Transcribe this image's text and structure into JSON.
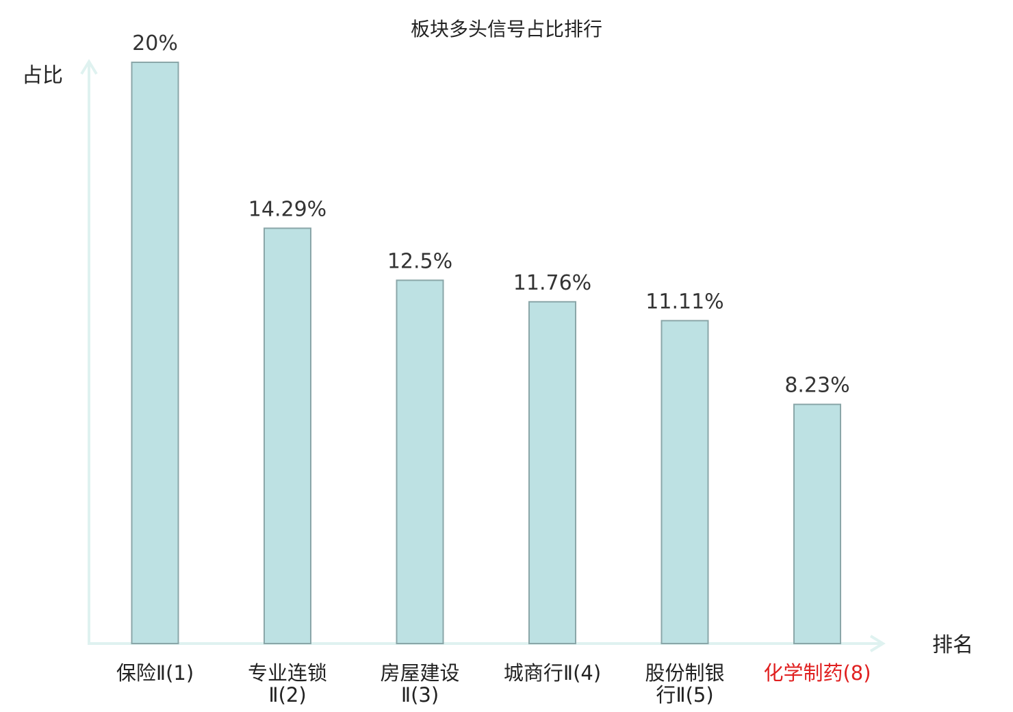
{
  "chart_data": {
    "type": "bar",
    "title": "板块多头信号占比排行",
    "ylabel": "占比",
    "xlabel": "排名",
    "ylim": [
      0,
      20
    ],
    "grid": false,
    "categories": [
      [
        "保险Ⅱ(1)"
      ],
      [
        "专业连锁",
        "Ⅱ(2)"
      ],
      [
        "房屋建设",
        "Ⅱ(3)"
      ],
      [
        "城商行Ⅱ(4)"
      ],
      [
        "股份制银",
        "行Ⅱ(5)"
      ],
      [
        "化学制药(8)"
      ]
    ],
    "values": [
      20,
      14.29,
      12.5,
      11.76,
      11.11,
      8.23
    ],
    "value_labels": [
      "20%",
      "14.29%",
      "12.5%",
      "11.76%",
      "11.11%",
      "8.23%"
    ],
    "highlight_index": 5
  },
  "colors": {
    "bar_fill": "#bde1e3",
    "bar_stroke": "#8aa6a8",
    "axis": "#dff2f0",
    "highlight_text": "#e02020"
  }
}
